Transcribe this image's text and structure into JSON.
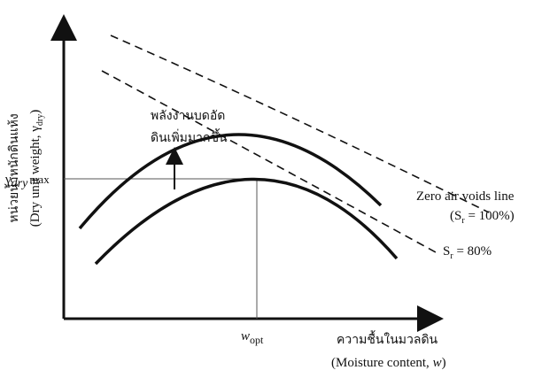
{
  "y_axis": {
    "label_thai": "หน่วยน้ำหนักดินแห้ง",
    "label_en": "(Dry unit weight, γ",
    "label_sub": "dry",
    "label_end": ")"
  },
  "peak_label": {
    "symbol": "γ",
    "sub": "dry",
    "suffix": "max"
  },
  "energy_label": {
    "line1": "พลังงานบดอัด",
    "line2": "ดินเพิ่มมากขึ้น"
  },
  "zero_air_voids": {
    "line1": "Zero air voids line",
    "line2_prefix": "(S",
    "line2_sub": "r",
    "line2_suffix": " = 100%)"
  },
  "saturation_80": {
    "prefix": "S",
    "sub": "r",
    "suffix": " = 80%"
  },
  "optimum_label": {
    "symbol": "w",
    "sub": "opt"
  },
  "x_axis": {
    "label_thai": "ความชื้นในมวลดิน",
    "label_en": "(Moisture content, ",
    "label_var": "w",
    "label_end": ")"
  }
}
